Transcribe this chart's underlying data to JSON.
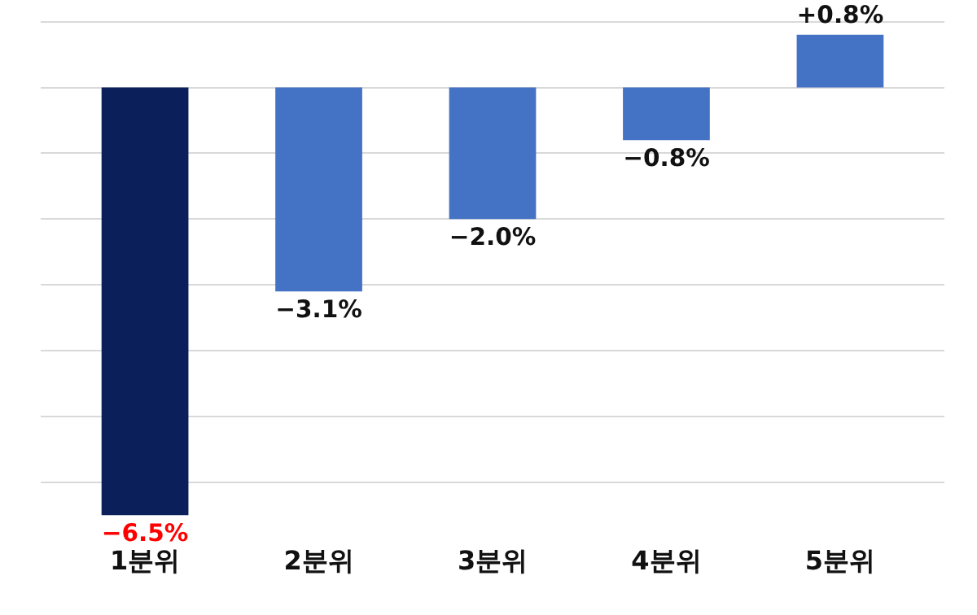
{
  "chart_data": {
    "type": "bar",
    "categories": [
      "1분위",
      "2분위",
      "3분위",
      "4분위",
      "5분위"
    ],
    "values": [
      -6.5,
      -3.1,
      -2.0,
      -0.8,
      0.8
    ],
    "colors": [
      "#0b1f5b",
      "#4472c4",
      "#4472c4",
      "#4472c4",
      "#4472c4"
    ],
    "value_labels": [
      "−6.5%",
      "−3.1%",
      "−2.0%",
      "−0.8%",
      "+0.8%"
    ],
    "grid": "y",
    "tick_labels": "x"
  }
}
